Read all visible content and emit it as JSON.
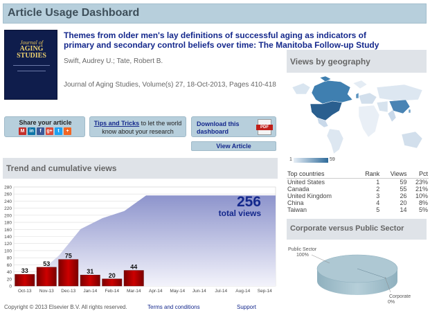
{
  "header": {
    "title": "Article Usage Dashboard"
  },
  "cover": {
    "journal_line1": "Journal of",
    "journal_line2": "AGING STUDIES"
  },
  "article": {
    "title": "Themes from older men's lay definitions of successful aging as indicators of primary and secondary control beliefs over time: The Manitoba Follow-up Study",
    "authors": "Swift, Audrey U.; Tate, Robert B.",
    "journal": "Journal of Aging Studies, Volume(s) 27, 18-Oct-2013, Pages 410-418"
  },
  "share": {
    "label": "Share your article",
    "icons": [
      {
        "name": "mendeley-icon",
        "glyph": "M",
        "color": "#c4302b"
      },
      {
        "name": "linkedin-icon",
        "glyph": "in",
        "color": "#0e76a8"
      },
      {
        "name": "facebook-icon",
        "glyph": "f",
        "color": "#3b5998"
      },
      {
        "name": "googleplus-icon",
        "glyph": "g+",
        "color": "#dd4b39"
      },
      {
        "name": "twitter-icon",
        "glyph": "t",
        "color": "#1da1f2"
      },
      {
        "name": "more-share-icon",
        "glyph": "+",
        "color": "#f26522"
      }
    ]
  },
  "tips": {
    "link": "Tips and Tricks",
    "rest": " to let the world know about your research"
  },
  "download": {
    "label": "Download this dashboard",
    "pdf": "PDF"
  },
  "view_article": "View Article",
  "trend": {
    "title": "Trend and cumulative views"
  },
  "chart_data": {
    "type": "bar",
    "categories": [
      "Oct-13",
      "Nov-13",
      "Dec-13",
      "Jan-14",
      "Feb-14",
      "Mar-14",
      "Apr-14",
      "May-14",
      "Jun-14",
      "Jul-14",
      "Aug-14",
      "Sep-14"
    ],
    "series": [
      {
        "values": [
          33,
          53,
          75,
          31,
          20,
          44,
          null,
          null,
          null,
          null,
          null,
          null
        ]
      },
      {
        "type": "area",
        "values": [
          33,
          86,
          161,
          192,
          212,
          256,
          256,
          256,
          256,
          256,
          256,
          256
        ]
      }
    ],
    "data_labels": [
      "33",
      "53",
      "75",
      "31",
      "20",
      "44"
    ],
    "yticks": [
      0,
      20,
      40,
      60,
      80,
      100,
      120,
      140,
      160,
      180,
      200,
      220,
      240,
      260,
      280
    ],
    "ylim": [
      0,
      280
    ],
    "total_value": "256",
    "total_label": "total views",
    "grid": true,
    "colors": {
      "bar": "#cc0000",
      "area": "#8d94cc"
    }
  },
  "geo": {
    "title": "Views by geography",
    "legend_min": "1",
    "legend_max": "59",
    "columns": [
      "Top countries",
      "Rank",
      "Views",
      "Pct"
    ],
    "rows": [
      {
        "country": "United States",
        "rank": "1",
        "views": "59",
        "pct": "23%"
      },
      {
        "country": "Canada",
        "rank": "2",
        "views": "55",
        "pct": "21%"
      },
      {
        "country": "United Kingdom",
        "rank": "3",
        "views": "26",
        "pct": "10%"
      },
      {
        "country": "China",
        "rank": "4",
        "views": "20",
        "pct": "8%"
      },
      {
        "country": "Taiwan",
        "rank": "5",
        "views": "14",
        "pct": "5%"
      }
    ]
  },
  "corporate": {
    "title": "Corporate versus Public Sector",
    "public_label": "Public Sector",
    "public_pct": "100%",
    "corp_label": "Corporate",
    "corp_pct": "0%"
  },
  "footer": {
    "copyright": "Copyright © 2013 Elsevier B.V. All rights reserved.",
    "terms": "Terms and conditions",
    "support": "Support"
  }
}
